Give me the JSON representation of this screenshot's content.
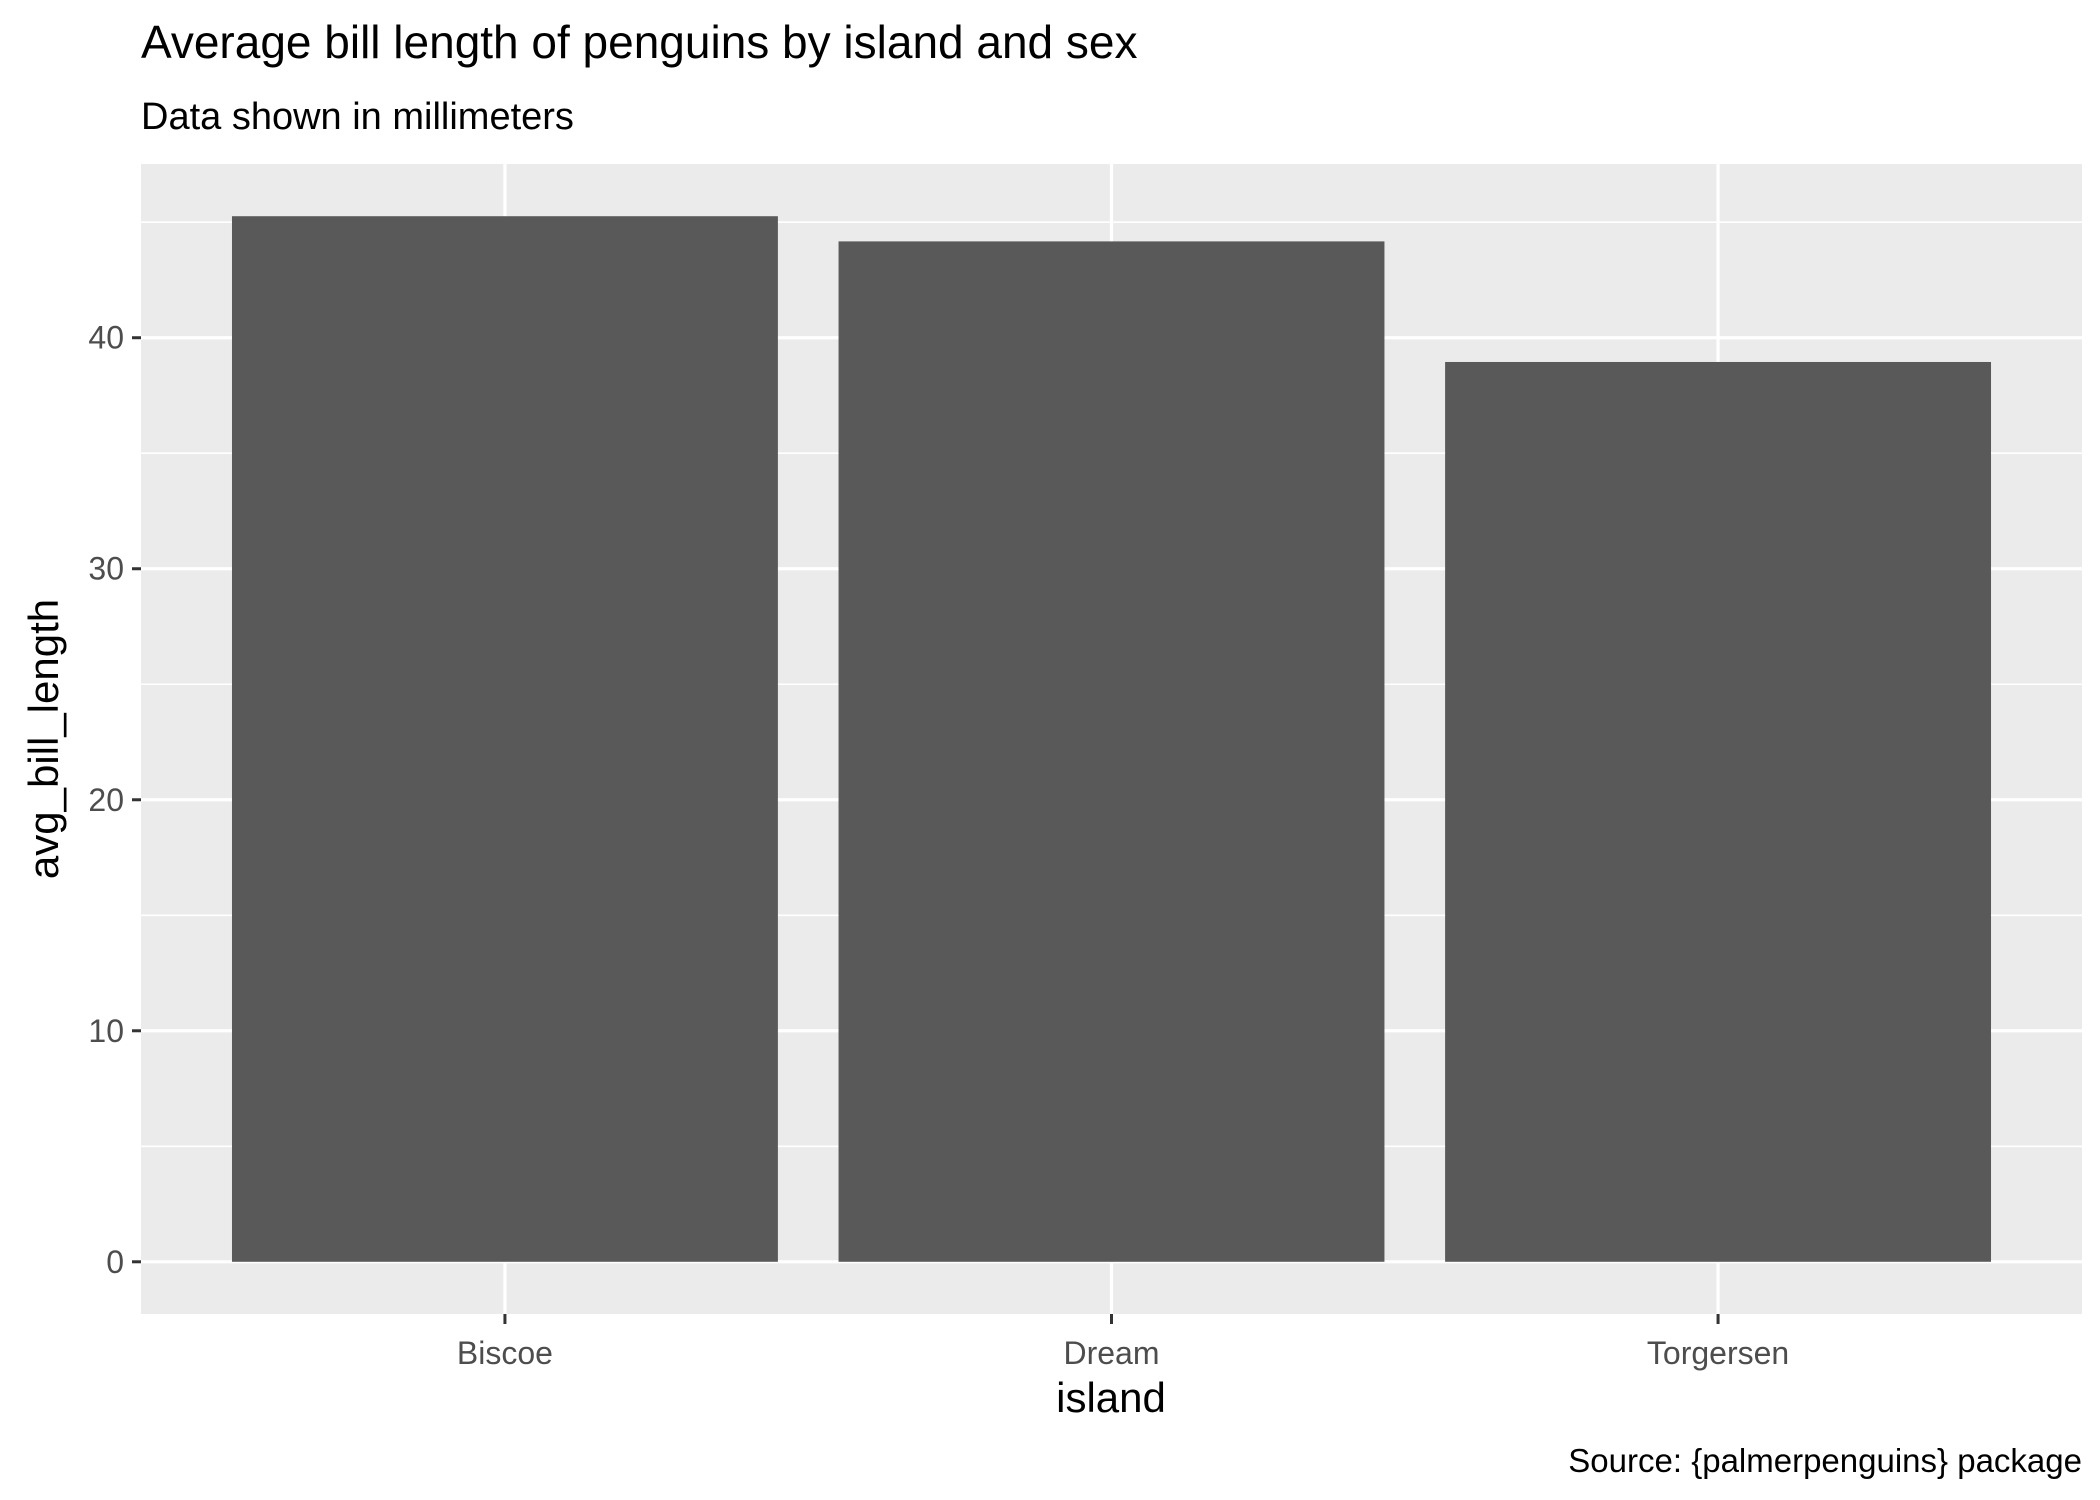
{
  "chart_data": {
    "type": "bar",
    "title": "Average bill length of penguins by island and sex",
    "subtitle": "Data shown in millimeters",
    "caption": "Source: {palmerpenguins} package",
    "xlabel": "island",
    "ylabel": "avg_bill_length",
    "categories": [
      "Biscoe",
      "Dream",
      "Torgersen"
    ],
    "values": [
      45.26,
      44.17,
      38.95
    ],
    "ylim": [
      -2.26,
      47.52
    ],
    "yticks": [
      0,
      10,
      20,
      30,
      40
    ],
    "ytick_labels": [
      "0",
      "10",
      "20",
      "30",
      "40"
    ],
    "grid": true,
    "legend": "none",
    "colors": {
      "bar": "#595959",
      "panel": "#ebebeb",
      "grid": "#ffffff",
      "axis_text": "#4d4d4d",
      "tick": "#333333",
      "text": "#000000"
    }
  }
}
